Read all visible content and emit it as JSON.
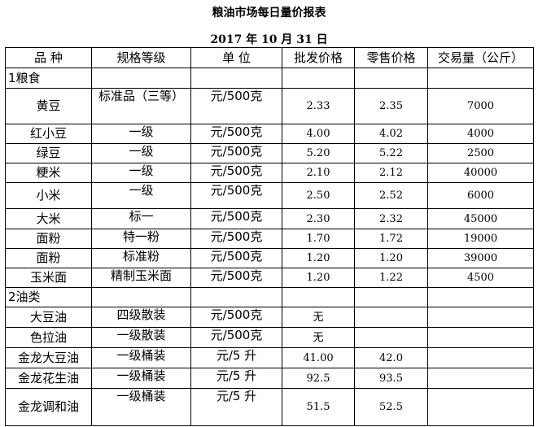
{
  "header": {
    "title": "粮油市场每日量价报表",
    "date": "2017 年 10 月 31 日"
  },
  "table": {
    "columns": [
      "品 种",
      "规格等级",
      "单 位",
      "批发价格",
      "零售价格",
      "交易量（公斤）"
    ],
    "rows": [
      [
        "1粮食"
      ],
      [
        "黄豆",
        "标准品（三等）",
        "元/500克",
        "2.33",
        "2.35",
        "7000"
      ],
      [
        "红小豆",
        "一级",
        "元/500克",
        "4.00",
        "4.02",
        "4000"
      ],
      [
        "绿豆",
        "一级",
        "元/500克",
        "5.20",
        "5.22",
        "2500"
      ],
      [
        "粳米",
        "一级",
        "元/500克",
        "2.10",
        "2.12",
        "40000"
      ],
      [
        "小米",
        "一级",
        "元/500克",
        "2.50",
        "2.52",
        "6000"
      ],
      [
        "大米",
        "标一",
        "元/500克",
        "2.30",
        "2.32",
        "45000"
      ],
      [
        "面粉",
        "特一粉",
        "元/500克",
        "1.70",
        "1.72",
        "19000"
      ],
      [
        "面粉",
        "标准粉",
        "元/500克",
        "1.20",
        "1.20",
        "39000"
      ],
      [
        "玉米面",
        "精制玉米面",
        "元/500克",
        "1.20",
        "1.22",
        "4500"
      ],
      [
        "2油类"
      ],
      [
        "大豆油",
        "四级散装",
        "元/500克",
        "无"
      ],
      [
        "色拉油",
        "一级散装",
        "元/500克",
        "无"
      ],
      [
        "金龙大豆油",
        "一级桶装",
        "元/5 升",
        "41.00",
        "42.0"
      ],
      [
        "金龙花生油",
        "一级桶装",
        "元/5 升",
        "92.5",
        "93.5"
      ],
      [
        "金龙调和油",
        "一级桶装",
        "元/5 升",
        "51.5",
        "52.5"
      ]
    ]
  }
}
